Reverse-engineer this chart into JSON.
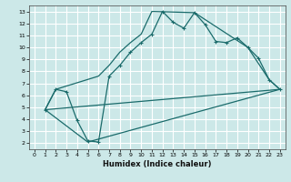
{
  "title": "",
  "xlabel": "Humidex (Indice chaleur)",
  "xlim": [
    -0.5,
    23.5
  ],
  "ylim": [
    1.5,
    13.5
  ],
  "xticks": [
    0,
    1,
    2,
    3,
    4,
    5,
    6,
    7,
    8,
    9,
    10,
    11,
    12,
    13,
    14,
    15,
    16,
    17,
    18,
    19,
    20,
    21,
    22,
    23
  ],
  "yticks": [
    2,
    3,
    4,
    5,
    6,
    7,
    8,
    9,
    10,
    11,
    12,
    13
  ],
  "bg_color": "#cce8e8",
  "line_color": "#1a6b6b",
  "grid_color": "#ffffff",
  "line1_x": [
    1,
    2,
    3,
    4,
    5,
    6,
    7,
    8,
    9,
    10,
    11,
    12,
    13,
    14,
    15,
    16,
    17,
    18,
    19,
    20,
    21,
    22,
    23
  ],
  "line1_y": [
    4.8,
    6.5,
    6.3,
    3.9,
    2.2,
    2.1,
    7.6,
    8.5,
    9.6,
    10.4,
    11.1,
    13.0,
    12.1,
    11.6,
    12.9,
    11.9,
    10.5,
    10.4,
    10.8,
    10.0,
    9.1,
    7.3,
    6.5
  ],
  "line2_x": [
    1,
    2,
    6,
    7,
    8,
    9,
    10,
    11,
    15,
    20,
    22,
    23
  ],
  "line2_y": [
    4.8,
    6.5,
    7.6,
    8.5,
    9.6,
    10.4,
    11.1,
    13.0,
    12.9,
    10.0,
    7.3,
    6.5
  ],
  "line3_x": [
    1,
    5,
    23
  ],
  "line3_y": [
    4.8,
    2.1,
    6.5
  ],
  "line4_x": [
    1,
    23
  ],
  "line4_y": [
    4.8,
    6.5
  ]
}
